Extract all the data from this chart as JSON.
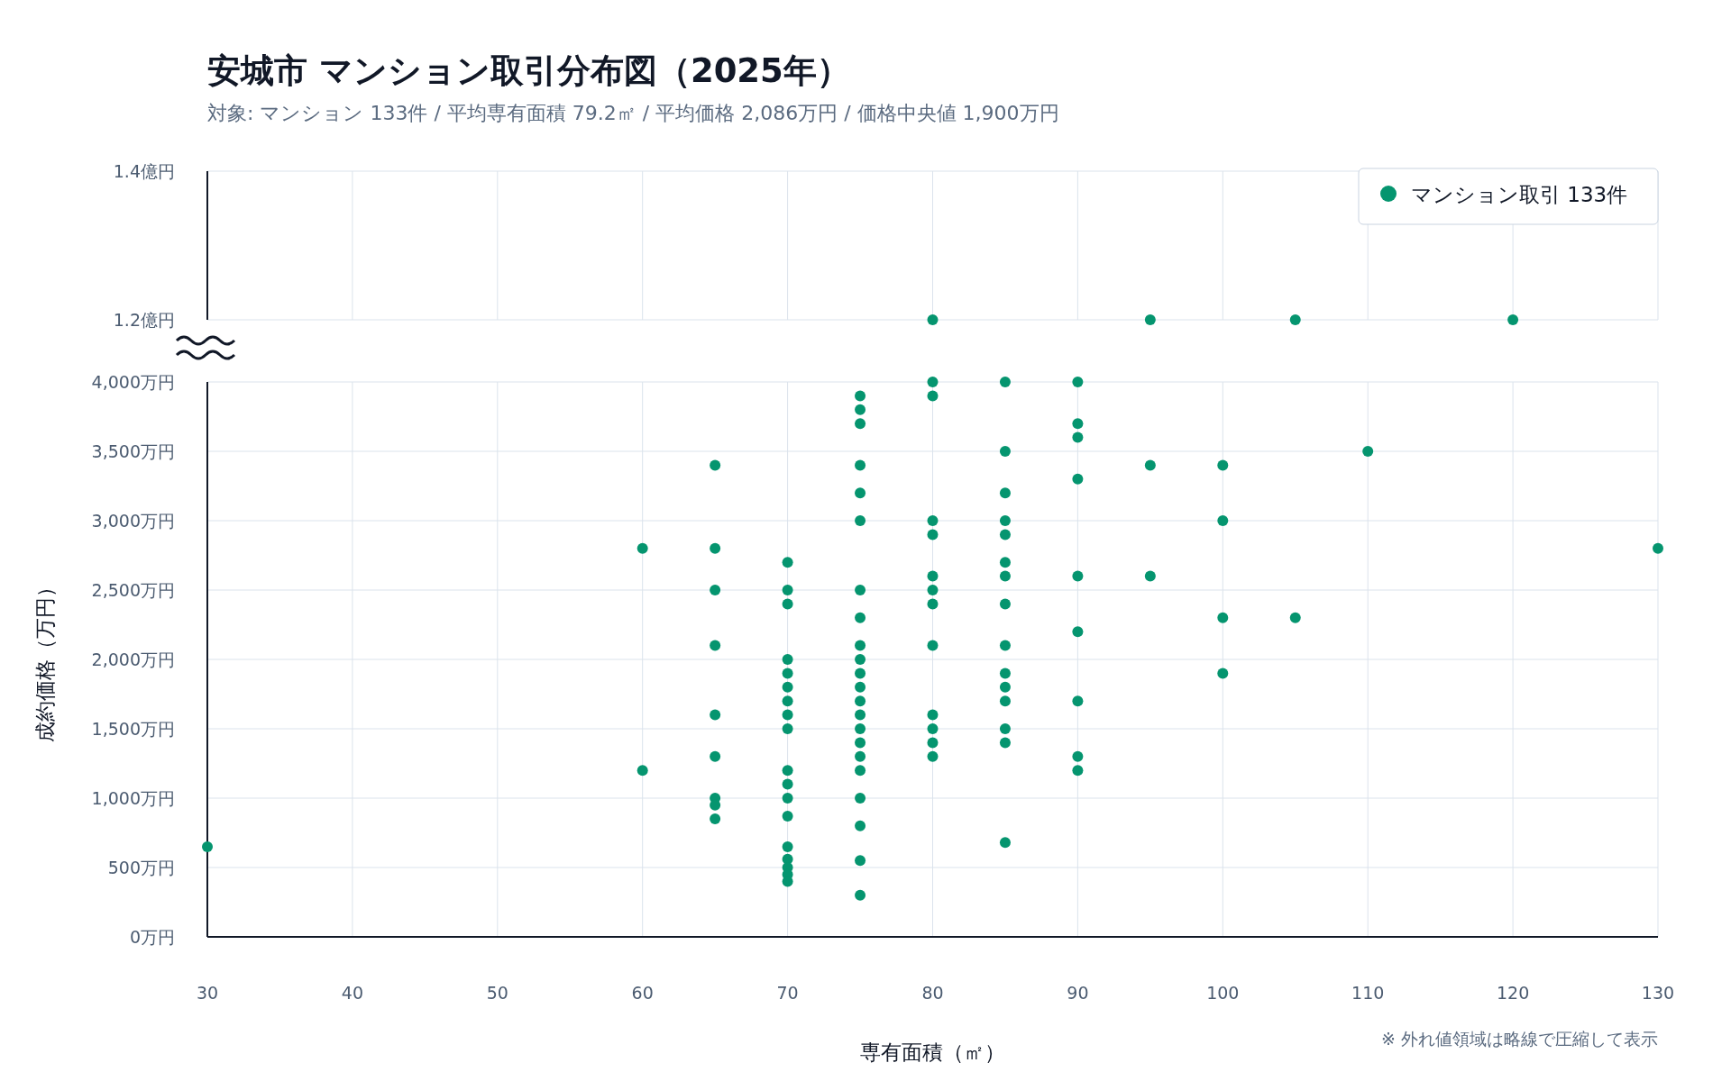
{
  "chart_data": [
    {
      "type": "scatter",
      "title": "安城市 マンション取引分布図（2025年）",
      "subtitle": "対象: マンション 133件 / 平均専有面積 79.2㎡ / 平均価格 2,086万円 / 価格中央値 1,900万円",
      "xlim": [
        30,
        130
      ],
      "xticks": [
        30,
        40,
        50,
        60,
        70,
        80,
        90,
        100,
        110,
        120,
        130
      ],
      "ylim": [
        1.2,
        1.4
      ],
      "yticks": [
        {
          "value": 1.2,
          "label": "1.2億円"
        },
        {
          "value": 1.4,
          "label": "1.4億円"
        }
      ],
      "tick_labels": "y",
      "grid": true,
      "legend": "top right",
      "series": [
        {
          "name": "マンション取引 133件",
          "color": "#05956f",
          "x": [
            80,
            95,
            105,
            120
          ],
          "values": [
            1.2,
            1.2,
            1.2,
            1.2
          ]
        }
      ]
    },
    {
      "type": "scatter",
      "xlabel": "専有面積（㎡）",
      "ylabel": "成約価格（万円）",
      "annotations": [
        "※ 外れ値領域は略線で圧縮して表示"
      ],
      "xlim": [
        30,
        130
      ],
      "xticks": [
        30,
        40,
        50,
        60,
        70,
        80,
        90,
        100,
        110,
        120,
        130
      ],
      "ylim": [
        0,
        4000
      ],
      "yticks": [
        {
          "value": 0,
          "label": "0万円"
        },
        {
          "value": 500,
          "label": "500万円"
        },
        {
          "value": 1000,
          "label": "1,000万円"
        },
        {
          "value": 1500,
          "label": "1,500万円"
        },
        {
          "value": 2000,
          "label": "2,000万円"
        },
        {
          "value": 2500,
          "label": "2,500万円"
        },
        {
          "value": 3000,
          "label": "3,000万円"
        },
        {
          "value": 3500,
          "label": "3,500万円"
        },
        {
          "value": 4000,
          "label": "4,000万円"
        }
      ],
      "grid": true,
      "series": [
        {
          "color": "#05956f",
          "x": [
            30,
            60,
            60,
            65,
            65,
            65,
            65,
            65,
            65,
            65,
            65,
            65,
            70,
            70,
            70,
            70,
            70,
            70,
            70,
            70,
            70,
            70,
            70,
            70,
            70,
            70,
            70,
            70,
            70,
            70,
            75,
            75,
            75,
            75,
            75,
            75,
            75,
            75,
            75,
            75,
            75,
            75,
            75,
            75,
            75,
            75,
            75,
            75,
            75,
            75,
            75,
            75,
            80,
            80,
            80,
            80,
            80,
            80,
            80,
            80,
            80,
            80,
            80,
            80,
            85,
            85,
            85,
            85,
            85,
            85,
            85,
            85,
            85,
            85,
            85,
            85,
            85,
            85,
            85,
            90,
            90,
            90,
            90,
            90,
            90,
            90,
            90,
            90,
            95,
            95,
            100,
            100,
            100,
            100,
            105,
            110,
            130
          ],
          "values": [
            650,
            2800,
            1200,
            3400,
            2800,
            2500,
            2100,
            1600,
            1300,
            1000,
            950,
            850,
            2700,
            2500,
            2400,
            2000,
            1900,
            1800,
            1700,
            1600,
            1500,
            1200,
            1100,
            1000,
            870,
            650,
            560,
            500,
            450,
            400,
            3900,
            3800,
            3700,
            3400,
            3200,
            3000,
            2500,
            2300,
            2100,
            2000,
            1900,
            1800,
            1700,
            1600,
            1500,
            1400,
            1300,
            1200,
            1000,
            800,
            550,
            300,
            4000,
            3900,
            3000,
            2900,
            2600,
            2500,
            2400,
            2100,
            1600,
            1500,
            1400,
            1300,
            4000,
            3500,
            3200,
            3000,
            2900,
            2700,
            2600,
            2400,
            2100,
            1900,
            1800,
            1700,
            1500,
            1400,
            680,
            4000,
            3700,
            3600,
            3300,
            2600,
            2200,
            1700,
            1300,
            1200,
            3400,
            2600,
            3400,
            3000,
            2300,
            1900,
            2300,
            3500,
            2800
          ]
        }
      ]
    }
  ]
}
